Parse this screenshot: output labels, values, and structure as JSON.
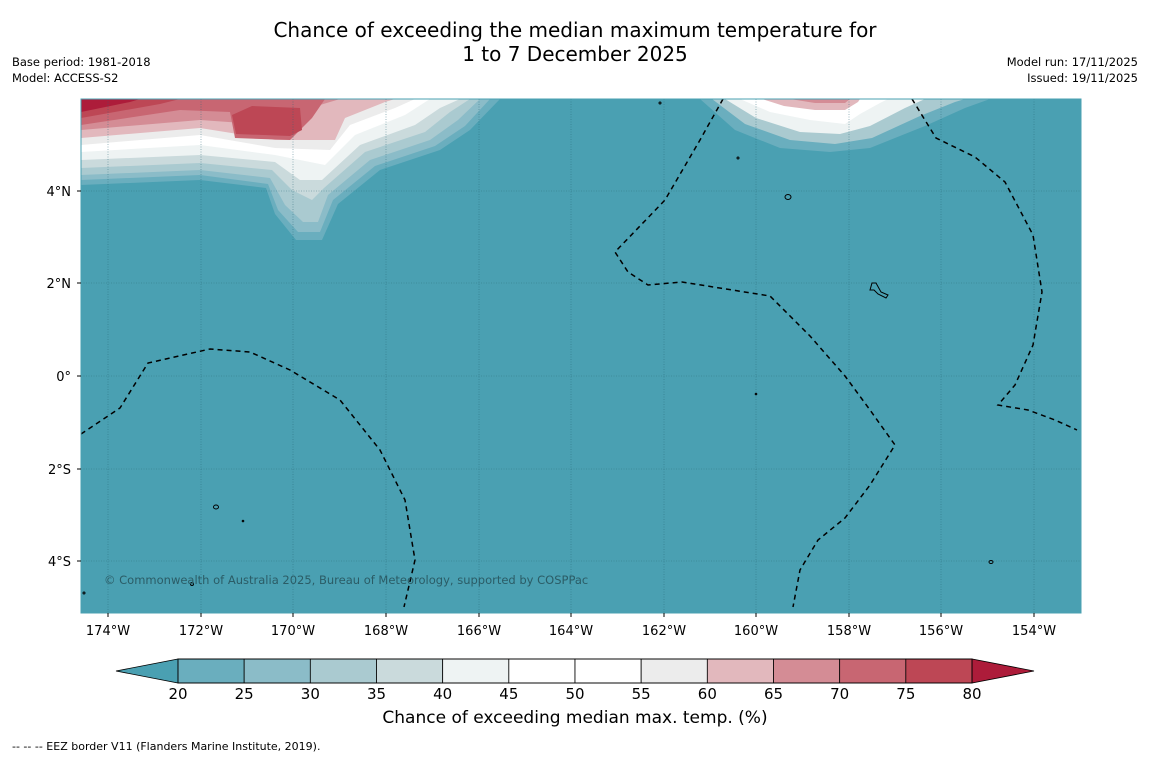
{
  "title": {
    "line1": "Chance of exceeding the median maximum temperature for",
    "line2": "1 to 7 December 2025"
  },
  "meta_left": {
    "base_period": "Base period: 1981-2018",
    "model": "Model: ACCESS-S2"
  },
  "meta_right": {
    "model_run": "Model run: 17/11/2025",
    "issued": "Issued: 19/11/2025"
  },
  "map": {
    "lon_ticks": [
      "174°W",
      "172°W",
      "170°W",
      "168°W",
      "166°W",
      "164°W",
      "162°W",
      "160°W",
      "158°W",
      "156°W",
      "154°W"
    ],
    "lat_ticks": [
      "4°N",
      "2°N",
      "0°",
      "2°S",
      "4°S"
    ],
    "copyright": "© Commonwealth of Australia 2025, Bureau of Meteorology, supported by COSPPac",
    "background_color": "#4aa0b2"
  },
  "colorbar": {
    "ticks": [
      "20",
      "25",
      "30",
      "35",
      "40",
      "45",
      "50",
      "55",
      "60",
      "65",
      "70",
      "75",
      "80"
    ],
    "colors": [
      "#6aaebe",
      "#8bbcc8",
      "#aacad0",
      "#cadadc",
      "#eef3f3",
      "#ffffff",
      "#ffffff",
      "#ececec",
      "#e2b8bd",
      "#d48c95",
      "#c86672",
      "#bd4755"
    ],
    "low_color": "#4aa0b2",
    "high_color": "#ad1c3a",
    "label": "Chance of exceeding median max. temp. (%)"
  },
  "footnote": "--  --  -- EEZ border V11 (Flanders Marine Institute, 2019)."
}
